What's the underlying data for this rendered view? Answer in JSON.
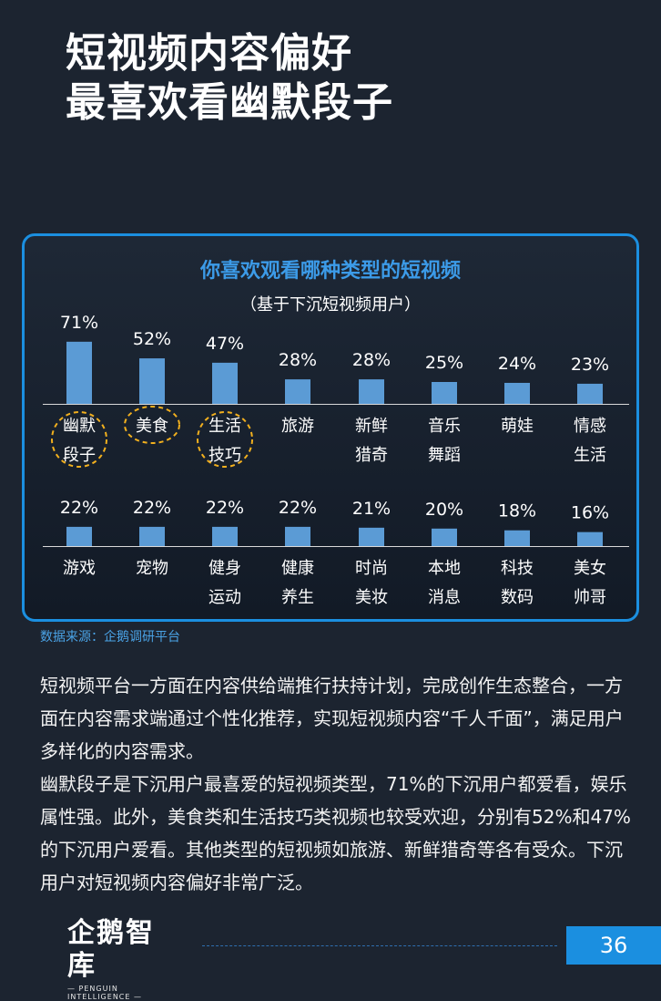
{
  "page": {
    "title_line1": "短视频内容偏好",
    "title_line2": "最喜欢看幽默段子",
    "source": "数据来源：企鹅调研平台",
    "paragraphs": [
      "短视频平台一方面在内容供给端推行扶持计划，完成创作生态整合，一方面在内容需求端通过个性化推荐，实现短视频内容“千人千面”，满足用户多样化的内容需求。",
      "幽默段子是下沉用户最喜爱的短视频类型，71%的下沉用户都爱看，娱乐属性强。此外，美食类和生活技巧类视频也较受欢迎，分别有52%和47%的下沉用户爱看。其他类型的短视频如旅游、新鲜猎奇等各有受众。下沉用户对短视频内容偏好非常广泛。"
    ],
    "logo_text": "企鹅智库",
    "logo_sub": "— PENGUIN INTELLIGENCE —",
    "page_number": "36"
  },
  "colors": {
    "bar": "#5b9bd5",
    "title": "#3c9be8",
    "highlight_circle": "#f2b01e",
    "border": "#1b8fe0"
  },
  "chart_data": {
    "type": "bar",
    "title": "你喜欢观看哪种类型的短视频",
    "subtitle": "（基于下沉短视频用户）",
    "unit": "%",
    "rows": [
      {
        "categories": [
          "幽默段子",
          "美食",
          "生活技巧",
          "旅游",
          "新鲜猎奇",
          "音乐舞蹈",
          "萌娃",
          "情感生活"
        ],
        "label_lines": [
          [
            "幽默",
            "段子"
          ],
          [
            "美食"
          ],
          [
            "生活",
            "技巧"
          ],
          [
            "旅游"
          ],
          [
            "新鲜",
            "猎奇"
          ],
          [
            "音乐",
            "舞蹈"
          ],
          [
            "萌娃"
          ],
          [
            "情感",
            "生活"
          ]
        ],
        "values": [
          71,
          52,
          47,
          28,
          28,
          25,
          24,
          23
        ],
        "highlighted": [
          true,
          true,
          true,
          false,
          false,
          false,
          false,
          false
        ]
      },
      {
        "categories": [
          "游戏",
          "宠物",
          "健身运动",
          "健康养生",
          "时尚美妆",
          "本地消息",
          "科技数码",
          "美女帅哥"
        ],
        "label_lines": [
          [
            "游戏"
          ],
          [
            "宠物"
          ],
          [
            "健身",
            "运动"
          ],
          [
            "健康",
            "养生"
          ],
          [
            "时尚",
            "美妆"
          ],
          [
            "本地",
            "消息"
          ],
          [
            "科技",
            "数码"
          ],
          [
            "美女",
            "帅哥"
          ]
        ],
        "values": [
          22,
          22,
          22,
          22,
          21,
          20,
          18,
          16
        ],
        "highlighted": [
          false,
          false,
          false,
          false,
          false,
          false,
          false,
          false
        ]
      }
    ],
    "ylim": [
      0,
      100
    ],
    "grid": false,
    "legend": "none"
  }
}
